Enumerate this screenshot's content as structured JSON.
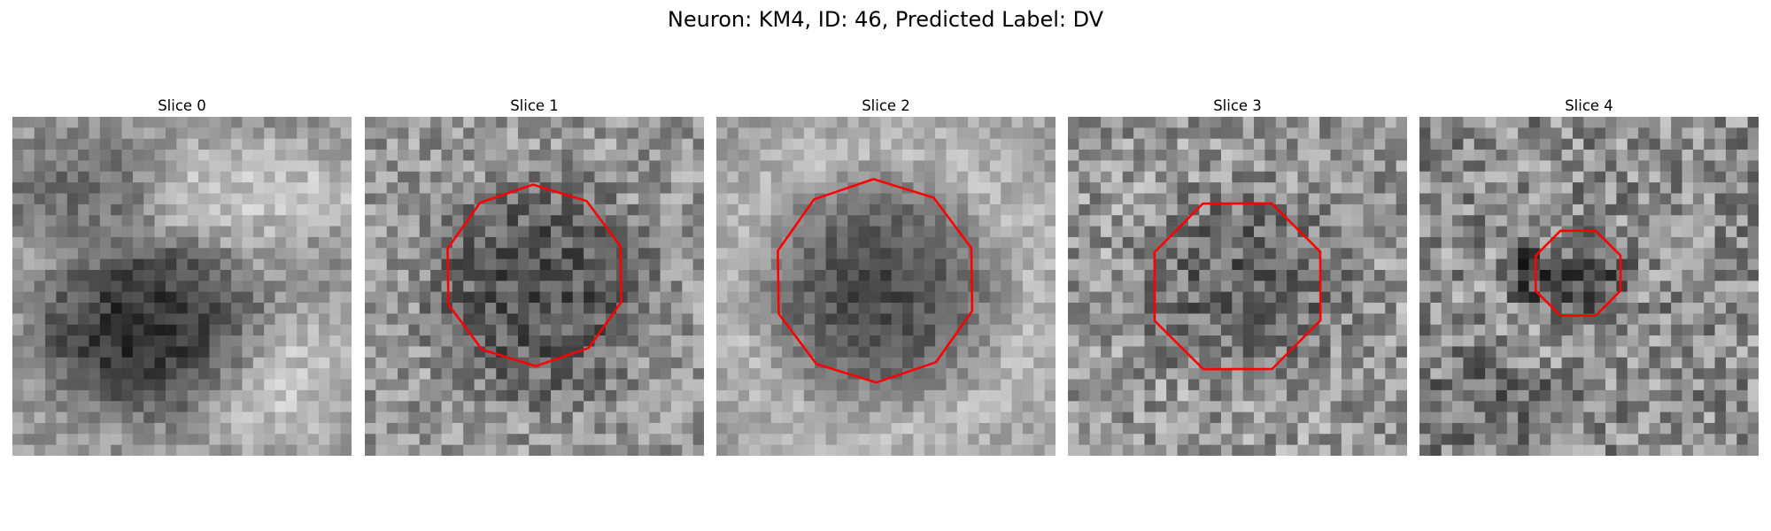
{
  "figure": {
    "title": "Neuron: KM4, ID: 46, Predicted Label: DV"
  },
  "panels": [
    {
      "title": "Slice 0"
    },
    {
      "title": "Slice 1"
    },
    {
      "title": "Slice 2"
    },
    {
      "title": "Slice 3"
    },
    {
      "title": "Slice 4"
    }
  ],
  "colors": {
    "contour": "#ff0000",
    "background": "#ffffff"
  }
}
